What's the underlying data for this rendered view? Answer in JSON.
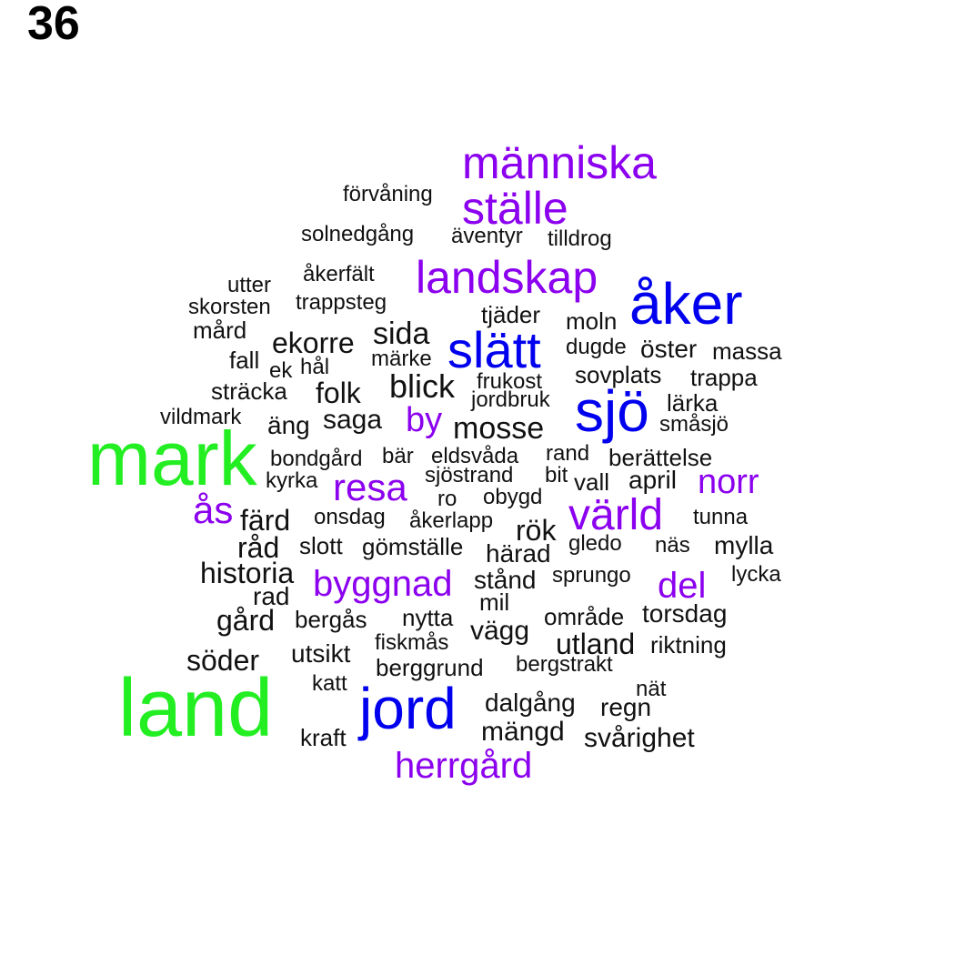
{
  "page_number": "36",
  "colors": {
    "green": "#22ee22",
    "blue": "#0000ee",
    "purple": "#8b00ee",
    "black": "#111111"
  },
  "words": [
    {
      "text": "människa",
      "color": "purple",
      "size": 50
    },
    {
      "text": "ställe",
      "color": "purple",
      "size": 50
    },
    {
      "text": "förvåning",
      "color": "black",
      "size": 24
    },
    {
      "text": "solnedgång",
      "color": "black",
      "size": 24
    },
    {
      "text": "äventyr",
      "color": "black",
      "size": 24
    },
    {
      "text": "tilldrog",
      "color": "black",
      "size": 24
    },
    {
      "text": "landskap",
      "color": "purple",
      "size": 50
    },
    {
      "text": "åkerfält",
      "color": "black",
      "size": 24
    },
    {
      "text": "utter",
      "color": "black",
      "size": 24
    },
    {
      "text": "skorsten",
      "color": "black",
      "size": 24
    },
    {
      "text": "trappsteg",
      "color": "black",
      "size": 24
    },
    {
      "text": "åker",
      "color": "blue",
      "size": 64
    },
    {
      "text": "tjäder",
      "color": "black",
      "size": 26
    },
    {
      "text": "moln",
      "color": "black",
      "size": 26
    },
    {
      "text": "mård",
      "color": "black",
      "size": 26
    },
    {
      "text": "ekorre",
      "color": "black",
      "size": 32
    },
    {
      "text": "sida",
      "color": "black",
      "size": 34
    },
    {
      "text": "slätt",
      "color": "blue",
      "size": 56
    },
    {
      "text": "dugde",
      "color": "black",
      "size": 24
    },
    {
      "text": "öster",
      "color": "black",
      "size": 28
    },
    {
      "text": "massa",
      "color": "black",
      "size": 26
    },
    {
      "text": "fall",
      "color": "black",
      "size": 26
    },
    {
      "text": "ek",
      "color": "black",
      "size": 24
    },
    {
      "text": "hål",
      "color": "black",
      "size": 24
    },
    {
      "text": "märke",
      "color": "black",
      "size": 24
    },
    {
      "text": "sovplats",
      "color": "black",
      "size": 26
    },
    {
      "text": "trappa",
      "color": "black",
      "size": 26
    },
    {
      "text": "frukost",
      "color": "black",
      "size": 24
    },
    {
      "text": "blick",
      "color": "black",
      "size": 36
    },
    {
      "text": "sträcka",
      "color": "black",
      "size": 26
    },
    {
      "text": "folk",
      "color": "black",
      "size": 32
    },
    {
      "text": "jordbruk",
      "color": "black",
      "size": 24
    },
    {
      "text": "sjö",
      "color": "blue",
      "size": 64
    },
    {
      "text": "lärka",
      "color": "black",
      "size": 26
    },
    {
      "text": "vildmark",
      "color": "black",
      "size": 24
    },
    {
      "text": "äng",
      "color": "black",
      "size": 28
    },
    {
      "text": "saga",
      "color": "black",
      "size": 30
    },
    {
      "text": "by",
      "color": "purple",
      "size": 38
    },
    {
      "text": "mosse",
      "color": "black",
      "size": 34
    },
    {
      "text": "småsjö",
      "color": "black",
      "size": 24
    },
    {
      "text": "mark",
      "color": "green",
      "size": 84
    },
    {
      "text": "bondgård",
      "color": "black",
      "size": 24
    },
    {
      "text": "bär",
      "color": "black",
      "size": 24
    },
    {
      "text": "eldsvåda",
      "color": "black",
      "size": 24
    },
    {
      "text": "rand",
      "color": "black",
      "size": 24
    },
    {
      "text": "berättelse",
      "color": "black",
      "size": 26
    },
    {
      "text": "kyrka",
      "color": "black",
      "size": 24
    },
    {
      "text": "sjöstrand",
      "color": "black",
      "size": 24
    },
    {
      "text": "bit",
      "color": "black",
      "size": 24
    },
    {
      "text": "resa",
      "color": "purple",
      "size": 42
    },
    {
      "text": "vall",
      "color": "black",
      "size": 26
    },
    {
      "text": "april",
      "color": "black",
      "size": 28
    },
    {
      "text": "norr",
      "color": "purple",
      "size": 38
    },
    {
      "text": "ro",
      "color": "black",
      "size": 24
    },
    {
      "text": "obygd",
      "color": "black",
      "size": 24
    },
    {
      "text": "ås",
      "color": "purple",
      "size": 42
    },
    {
      "text": "värld",
      "color": "purple",
      "size": 48
    },
    {
      "text": "färd",
      "color": "black",
      "size": 32
    },
    {
      "text": "onsdag",
      "color": "black",
      "size": 24
    },
    {
      "text": "åkerlapp",
      "color": "black",
      "size": 24
    },
    {
      "text": "rök",
      "color": "black",
      "size": 32
    },
    {
      "text": "tunna",
      "color": "black",
      "size": 24
    },
    {
      "text": "råd",
      "color": "black",
      "size": 32
    },
    {
      "text": "slott",
      "color": "black",
      "size": 26
    },
    {
      "text": "gömställe",
      "color": "black",
      "size": 26
    },
    {
      "text": "härad",
      "color": "black",
      "size": 28
    },
    {
      "text": "gledo",
      "color": "black",
      "size": 24
    },
    {
      "text": "näs",
      "color": "black",
      "size": 24
    },
    {
      "text": "mylla",
      "color": "black",
      "size": 28
    },
    {
      "text": "historia",
      "color": "black",
      "size": 32
    },
    {
      "text": "byggnad",
      "color": "purple",
      "size": 40
    },
    {
      "text": "stånd",
      "color": "black",
      "size": 28
    },
    {
      "text": "sprungo",
      "color": "black",
      "size": 24
    },
    {
      "text": "del",
      "color": "purple",
      "size": 40
    },
    {
      "text": "lycka",
      "color": "black",
      "size": 24
    },
    {
      "text": "rad",
      "color": "black",
      "size": 28
    },
    {
      "text": "mil",
      "color": "black",
      "size": 26
    },
    {
      "text": "gård",
      "color": "black",
      "size": 32
    },
    {
      "text": "bergås",
      "color": "black",
      "size": 26
    },
    {
      "text": "nytta",
      "color": "black",
      "size": 26
    },
    {
      "text": "vägg",
      "color": "black",
      "size": 30
    },
    {
      "text": "område",
      "color": "black",
      "size": 26
    },
    {
      "text": "torsdag",
      "color": "black",
      "size": 28
    },
    {
      "text": "fiskmås",
      "color": "black",
      "size": 24
    },
    {
      "text": "utland",
      "color": "black",
      "size": 32
    },
    {
      "text": "riktning",
      "color": "black",
      "size": 26
    },
    {
      "text": "söder",
      "color": "black",
      "size": 32
    },
    {
      "text": "utsikt",
      "color": "black",
      "size": 28
    },
    {
      "text": "berggrund",
      "color": "black",
      "size": 26
    },
    {
      "text": "bergstrakt",
      "color": "black",
      "size": 24
    },
    {
      "text": "katt",
      "color": "black",
      "size": 24
    },
    {
      "text": "nät",
      "color": "black",
      "size": 24
    },
    {
      "text": "land",
      "color": "green",
      "size": 90
    },
    {
      "text": "jord",
      "color": "blue",
      "size": 64
    },
    {
      "text": "dalgång",
      "color": "black",
      "size": 28
    },
    {
      "text": "regn",
      "color": "black",
      "size": 28
    },
    {
      "text": "mängd",
      "color": "black",
      "size": 30
    },
    {
      "text": "kraft",
      "color": "black",
      "size": 26
    },
    {
      "text": "svårighet",
      "color": "black",
      "size": 30
    },
    {
      "text": "herrgård",
      "color": "purple",
      "size": 40
    }
  ]
}
